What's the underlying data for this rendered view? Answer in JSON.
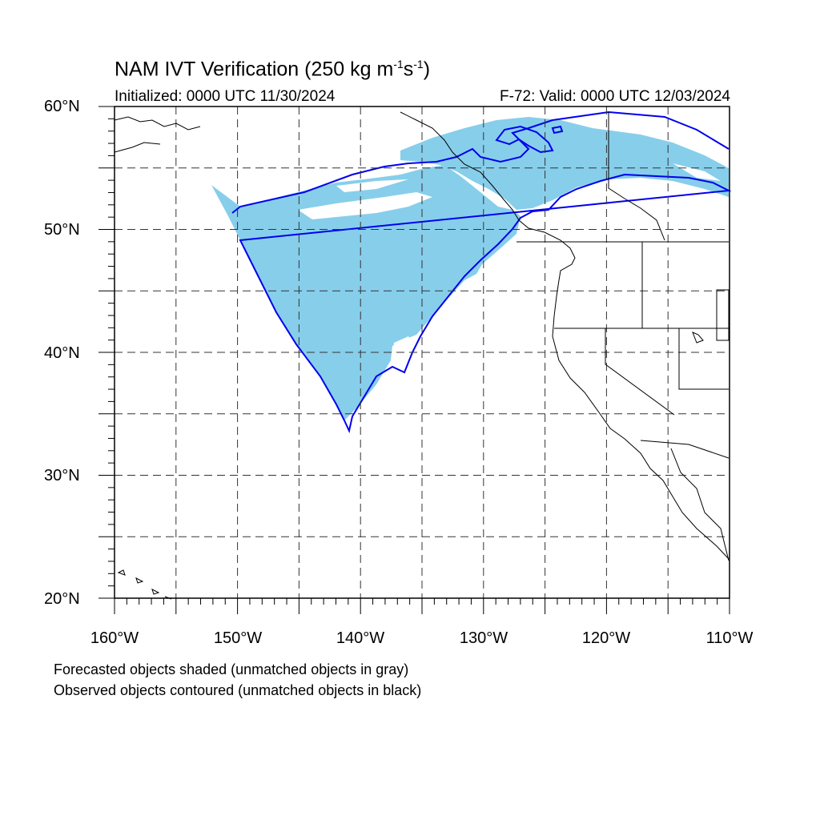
{
  "title": {
    "main": "NAM IVT Verification (250 kg m",
    "sup1": "-1",
    "mid": "s",
    "sup2": "-1",
    "end": ")"
  },
  "initialized": "Initialized: 0000 UTC 11/30/2024",
  "valid": "F-72: Valid: 0000 UTC 12/03/2024",
  "y_ticks": [
    "60°N",
    "50°N",
    "40°N",
    "30°N",
    "20°N"
  ],
  "x_ticks": [
    "160°W",
    "150°W",
    "140°W",
    "130°W",
    "120°W",
    "110°W"
  ],
  "notes": {
    "forecast": "Forecasted objects shaded (unmatched objects in gray)",
    "observed": "Observed objects contoured (unmatched objects in black)"
  },
  "map_extent": {
    "lon": [
      -160,
      -110
    ],
    "lat": [
      20,
      60
    ]
  },
  "colors": {
    "forecast_fill": "#87ceeb",
    "observed_contour": "#0000ee",
    "grid": "#333333",
    "coast": "#000000"
  }
}
